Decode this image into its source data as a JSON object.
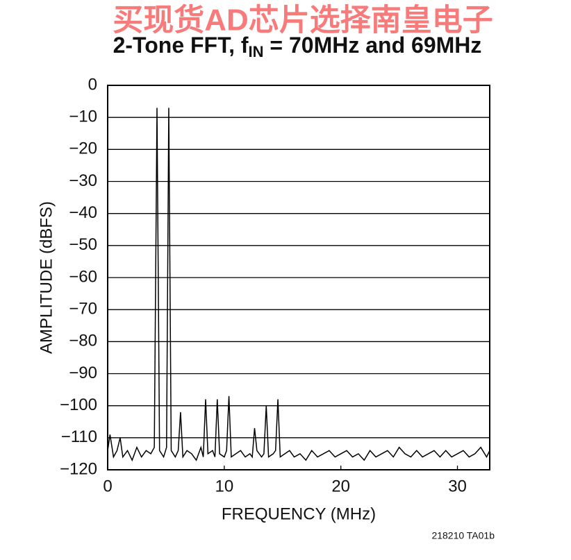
{
  "chart_data": {
    "type": "line",
    "watermark": "买现货AD芯片选择南皇电子",
    "title": "2-Tone FFT, f",
    "title_subscript": "IN",
    "title_rest": " = 70MHz and 69MHz",
    "xlabel": "FREQUENCY (MHz)",
    "ylabel": "AMPLITUDE (dBFS)",
    "figure_id": "218210 TA01b",
    "color": "#000000",
    "x": [
      0,
      0.2,
      0.5,
      0.8,
      1.07,
      1.3,
      1.7,
      2.1,
      2.5,
      2.9,
      3.3,
      3.7,
      4.0,
      4.23,
      4.45,
      4.8,
      5.05,
      5.24,
      5.45,
      5.8,
      6.05,
      6.25,
      6.45,
      6.8,
      7.2,
      7.6,
      8.0,
      8.2,
      8.4,
      8.6,
      9.0,
      9.2,
      9.4,
      9.6,
      10.0,
      10.2,
      10.4,
      10.6,
      11.0,
      11.4,
      11.8,
      12.2,
      12.4,
      12.6,
      12.8,
      13.2,
      13.4,
      13.6,
      13.8,
      14.2,
      14.4,
      14.6,
      14.8,
      15.2,
      15.6,
      16.0,
      16.5,
      17.0,
      17.5,
      18.0,
      18.5,
      19.0,
      19.5,
      20.0,
      20.5,
      21.0,
      21.5,
      22.0,
      22.5,
      23.0,
      23.5,
      24.0,
      24.5,
      25.0,
      25.5,
      26.0,
      26.5,
      27.0,
      27.5,
      28.0,
      28.5,
      29.0,
      29.5,
      30.0,
      30.5,
      31.0,
      31.5,
      32.0,
      32.5,
      32.768
    ],
    "values": [
      -114,
      -109,
      -116,
      -114,
      -110,
      -116,
      -114,
      -117,
      -113,
      -116,
      -114,
      -115,
      -113,
      -7,
      -114,
      -116,
      -113,
      -7,
      -114,
      -116,
      -114,
      -102,
      -116,
      -114,
      -115,
      -117,
      -113,
      -116,
      -98,
      -115,
      -114,
      -116,
      -98,
      -115,
      -116,
      -114,
      -97,
      -116,
      -115,
      -114,
      -116,
      -115,
      -116,
      -107,
      -114,
      -116,
      -115,
      -100,
      -116,
      -115,
      -114,
      -98,
      -116,
      -115,
      -114,
      -116,
      -115,
      -117,
      -114,
      -116,
      -115,
      -114,
      -116,
      -115,
      -114,
      -116,
      -115,
      -117,
      -114,
      -116,
      -115,
      -114,
      -116,
      -113,
      -115,
      -116,
      -114,
      -116,
      -115,
      -114,
      -116,
      -114,
      -116,
      -115,
      -114,
      -116,
      -115,
      -113,
      -116,
      -114
    ],
    "xlim": [
      0,
      32.768
    ],
    "xticks": [
      0,
      10,
      20,
      30
    ],
    "ylim": [
      -120,
      0
    ],
    "yticks": [
      0,
      {
        "value": -10,
        "label": "−10"
      },
      {
        "value": -20,
        "label": "−20"
      },
      {
        "value": -30,
        "label": "−30"
      },
      {
        "value": -40,
        "label": "−40"
      },
      {
        "value": -50,
        "label": "−50"
      },
      {
        "value": -60,
        "label": "−60"
      },
      {
        "value": -70,
        "label": "−70"
      },
      {
        "value": -80,
        "label": "−80"
      },
      {
        "value": -90,
        "label": "−90"
      },
      {
        "value": -100,
        "label": "−100"
      },
      {
        "value": -110,
        "label": "−110"
      },
      {
        "value": -120,
        "label": "−120"
      }
    ],
    "grid": true
  }
}
